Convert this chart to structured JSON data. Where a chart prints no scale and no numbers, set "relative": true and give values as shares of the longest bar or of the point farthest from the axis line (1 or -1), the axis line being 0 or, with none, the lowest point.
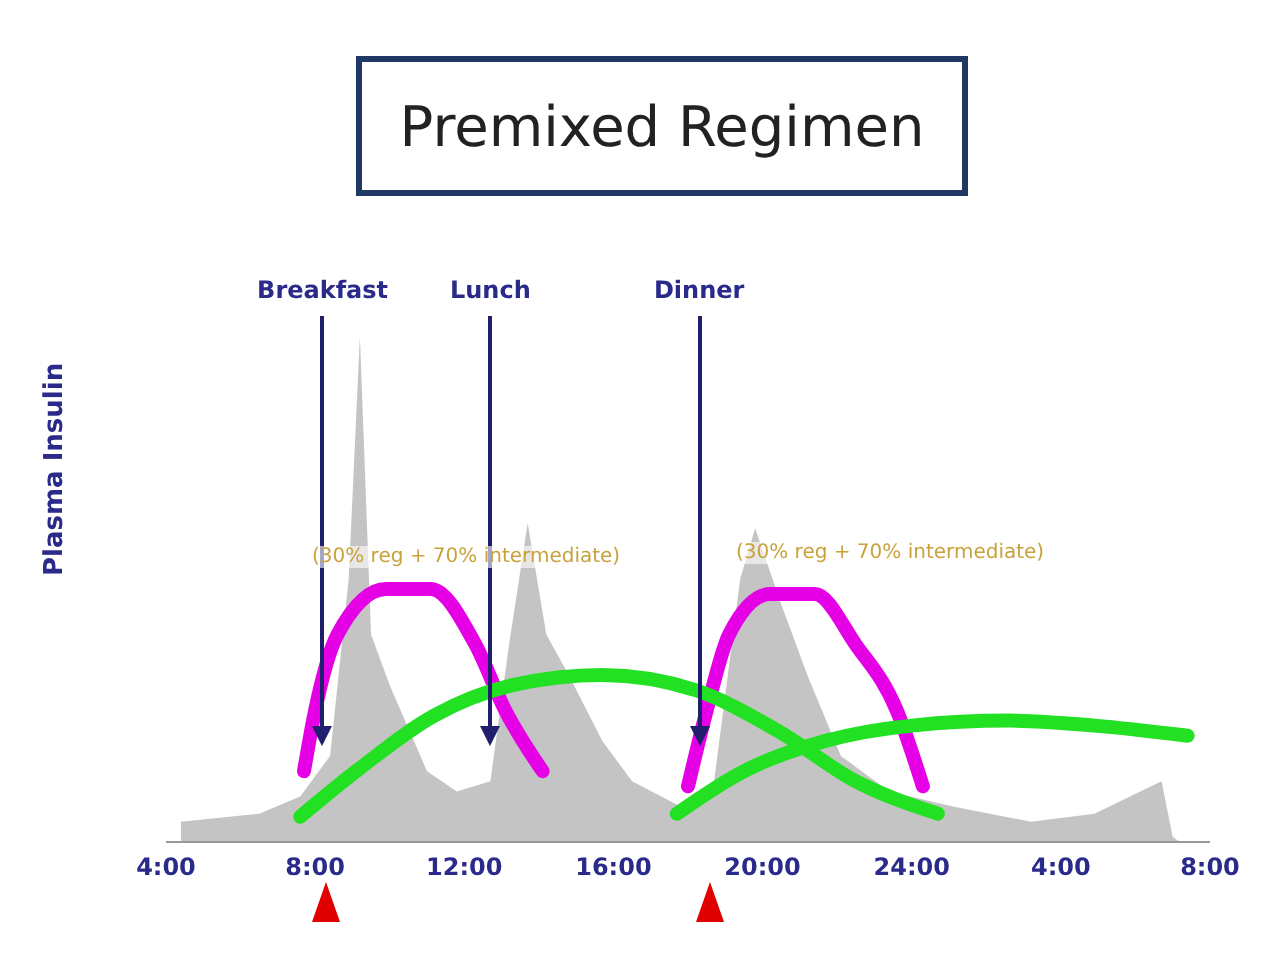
{
  "chart_data": {
    "type": "line",
    "title": "Premixed Regimen",
    "ylabel": "Plasma Insulin",
    "relative": true,
    "marker": "none",
    "line_style": "solid",
    "xlim": [
      "2000-01-01T04:00",
      "2000-01-02T08:00"
    ],
    "xticks": [
      {
        "value": "2000-01-01T04:00",
        "label": "4:00"
      },
      {
        "value": "2000-01-01T08:00",
        "label": "8:00"
      },
      {
        "value": "2000-01-01T12:00",
        "label": "12:00"
      },
      {
        "value": "2000-01-01T16:00",
        "label": "16:00"
      },
      {
        "value": "2000-01-01T20:00",
        "label": "20:00"
      },
      {
        "value": "2000-01-02T00:00",
        "label": "24:00"
      },
      {
        "value": "2000-01-02T04:00",
        "label": "4:00"
      },
      {
        "value": "2000-01-02T08:00",
        "label": "8:00"
      }
    ],
    "annotations": [
      "(30% reg + 70% intermediate)",
      "(30% reg + 70% intermediate)"
    ],
    "ref_lines": [
      {
        "axis": "x",
        "value": "2000-01-01T08:12",
        "label": "Breakfast",
        "color": "#1f1f6e"
      },
      {
        "axis": "x",
        "value": "2000-01-01T12:42",
        "label": "Lunch",
        "color": "#1f1f6e"
      },
      {
        "axis": "x",
        "value": "2000-01-01T18:18",
        "label": "Dinner",
        "color": "#1f1f6e"
      }
    ],
    "series": [
      {
        "type": "area",
        "color": "#c4c4c4",
        "x": [
          "2000-01-01T04:24",
          "2000-01-01T06:30",
          "2000-01-01T07:36",
          "2000-01-01T08:24",
          "2000-01-01T08:54",
          "2000-01-01T09:12",
          "2000-01-01T09:30",
          "2000-01-01T10:00",
          "2000-01-01T11:00",
          "2000-01-01T11:48",
          "2000-01-01T12:42",
          "2000-01-01T13:12",
          "2000-01-01T13:42",
          "2000-01-01T14:12",
          "2000-01-01T14:48",
          "2000-01-01T15:42",
          "2000-01-01T16:30",
          "2000-01-01T17:48",
          "2000-01-01T18:42",
          "2000-01-01T19:24",
          "2000-01-01T19:48",
          "2000-01-01T20:30",
          "2000-01-01T21:12",
          "2000-01-01T22:06",
          "2000-01-01T23:24",
          "2000-01-02T01:06",
          "2000-01-02T03:12",
          "2000-01-02T04:54",
          "2000-01-02T06:42",
          "2000-01-02T07:00",
          "2000-01-02T07:12"
        ],
        "values": [
          0.04,
          0.056,
          0.09,
          0.17,
          0.52,
          1.0,
          0.41,
          0.31,
          0.14,
          0.1,
          0.12,
          0.39,
          0.63,
          0.41,
          0.33,
          0.2,
          0.12,
          0.07,
          0.12,
          0.52,
          0.62,
          0.47,
          0.33,
          0.17,
          0.1,
          0.07,
          0.04,
          0.056,
          0.12,
          0.01,
          0
        ]
      },
      {
        "color": "#e600e6",
        "x": [
          "2000-01-01T07:42",
          "2000-01-01T08:00",
          "2000-01-01T08:36",
          "2000-01-01T09:54",
          "2000-01-01T11:06",
          "2000-01-01T12:18",
          "2000-01-01T13:06",
          "2000-01-01T14:06"
        ],
        "values": [
          0.14,
          0.26,
          0.41,
          0.5,
          0.5,
          0.39,
          0.26,
          0.14
        ]
      },
      {
        "color": "#e600e6",
        "x": [
          "2000-01-01T18:00",
          "2000-01-01T18:30",
          "2000-01-01T19:06",
          "2000-01-01T20:12",
          "2000-01-01T21:24",
          "2000-01-01T22:30",
          "2000-01-01T23:36",
          "2000-01-02T00:18"
        ],
        "values": [
          0.11,
          0.26,
          0.41,
          0.49,
          0.49,
          0.39,
          0.26,
          0.11
        ]
      },
      {
        "color": "#22e022",
        "x": [
          "2000-01-01T07:36",
          "2000-01-01T09:06",
          "2000-01-01T11:12",
          "2000-01-01T13:18",
          "2000-01-01T15:42",
          "2000-01-01T18:12",
          "2000-01-01T20:24",
          "2000-01-01T22:30",
          "2000-01-02T00:42"
        ],
        "values": [
          0.05,
          0.14,
          0.25,
          0.31,
          0.33,
          0.3,
          0.22,
          0.12,
          0.056
        ]
      },
      {
        "color": "#22e022",
        "x": [
          "2000-01-01T17:42",
          "2000-01-01T19:30",
          "2000-01-01T21:42",
          "2000-01-02T00:00",
          "2000-01-02T02:36",
          "2000-01-02T04:54",
          "2000-01-02T07:24"
        ],
        "values": [
          0.056,
          0.14,
          0.2,
          0.23,
          0.24,
          0.23,
          0.21
        ]
      }
    ]
  }
}
